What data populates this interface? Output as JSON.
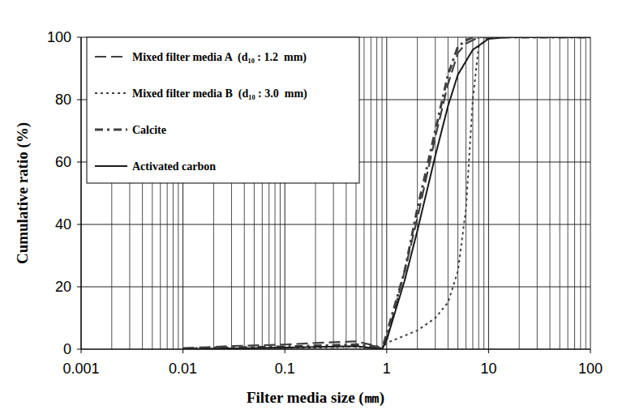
{
  "chart_data": {
    "type": "line",
    "log": "x",
    "grid": true,
    "legend": "top-left",
    "x_label": "Filter media size (㎜)",
    "y_label": "Cumulative ratio (%)",
    "xlim": [
      0.001,
      100
    ],
    "ylim": [
      0,
      100
    ],
    "xticks": [
      0.001,
      0.01,
      0.1,
      1,
      10,
      100
    ],
    "yticks": [
      0,
      20,
      40,
      60,
      80,
      100
    ],
    "series": [
      {
        "name": "Mixed filter media A  (d₁₀ : 1.2  mm)",
        "color": "#404040",
        "line_style": "dashed",
        "x": [
          0.01,
          0.03,
          0.1,
          0.2,
          0.5,
          0.8,
          0.9,
          1,
          1.5,
          2,
          3,
          4,
          5,
          6,
          8,
          100
        ],
        "values": [
          0.3,
          1,
          1.5,
          2,
          2.5,
          1,
          0,
          3,
          25,
          42,
          68,
          85,
          95,
          98,
          100,
          100
        ]
      },
      {
        "name": "Mixed filter media B  (d₁₀ : 3.0  mm)",
        "color": "#404040",
        "line_style": "dotted",
        "x": [
          0.01,
          0.1,
          0.5,
          0.9,
          1,
          2,
          3,
          4,
          5,
          6,
          7,
          8,
          10,
          100
        ],
        "values": [
          0,
          0.3,
          0.8,
          0,
          2,
          6,
          10,
          15,
          25,
          45,
          80,
          97,
          100,
          100
        ]
      },
      {
        "name": "Calcite",
        "color": "#404040",
        "line_style": "dashdot",
        "x": [
          0.01,
          0.1,
          0.5,
          0.8,
          0.9,
          1,
          1.5,
          2,
          3,
          4,
          5,
          6,
          7,
          100
        ],
        "values": [
          0.2,
          0.8,
          1.5,
          0.8,
          0,
          5,
          25,
          45,
          70,
          88,
          97,
          99,
          100,
          100
        ]
      },
      {
        "name": "Activated carbon",
        "color": "#1a1a1a",
        "line_style": "solid",
        "x": [
          0.01,
          0.1,
          0.5,
          0.9,
          1,
          1.5,
          2,
          3,
          4,
          5,
          7,
          10,
          15,
          100
        ],
        "values": [
          0,
          0.5,
          1,
          0,
          3,
          22,
          38,
          62,
          78,
          88,
          96,
          99.5,
          100,
          100
        ]
      }
    ]
  }
}
